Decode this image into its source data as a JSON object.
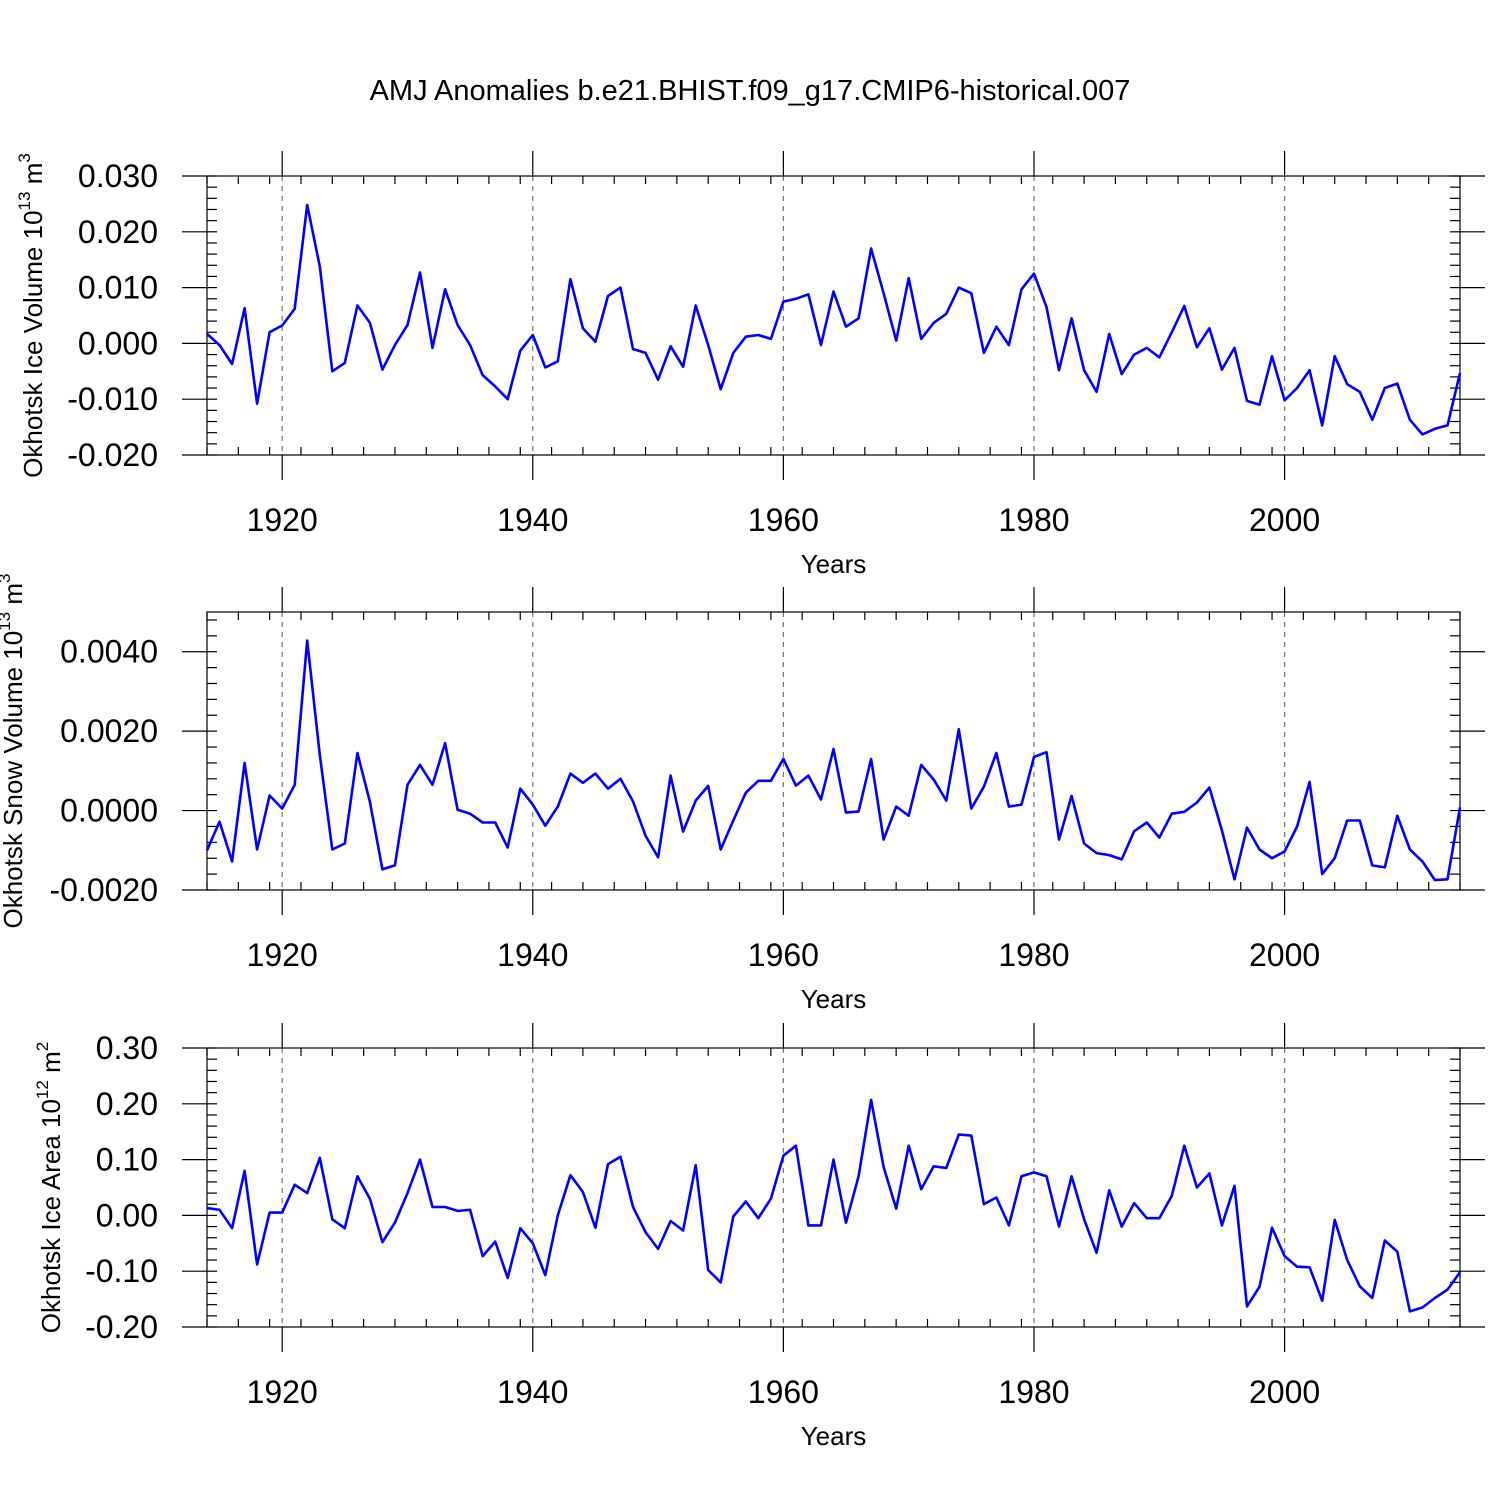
{
  "title": "AMJ Anomalies b.e21.BHIST.f09_g17.CMIP6-historical.007",
  "colors": {
    "series": "#0000ff",
    "axes": "#000000",
    "grid": "#777777"
  },
  "chart_data": [
    {
      "type": "line",
      "name": "ice-volume",
      "xlabel": "Years",
      "ylabel": {
        "text": "Okhotsk Ice Volume 10",
        "sup1": "13",
        "unit": " m",
        "sup2": "3"
      },
      "xlim": [
        1914,
        2014
      ],
      "xticks": [
        1920,
        1940,
        1960,
        1980,
        2000
      ],
      "xtick_labels": [
        "1920",
        "1940",
        "1960",
        "1980",
        "2000"
      ],
      "ylim": [
        -0.02,
        0.03
      ],
      "yticks": [
        -0.02,
        -0.01,
        0.0,
        0.01,
        0.02,
        0.03
      ],
      "ytick_labels": [
        "-0.020",
        "-0.010",
        "0.000",
        "0.010",
        "0.020",
        "0.030"
      ],
      "grid": "vertical dashed at major x ticks",
      "x_start": 1914,
      "values": [
        0.0017,
        -0.0003,
        -0.0037,
        0.0063,
        -0.0108,
        0.002,
        0.0032,
        0.0062,
        0.0248,
        0.0138,
        -0.005,
        -0.0035,
        0.0068,
        0.0037,
        -0.0047,
        -0.0003,
        0.0033,
        0.0127,
        -0.0008,
        0.0097,
        0.0033,
        -0.0003,
        -0.0057,
        -0.0077,
        -0.01,
        -0.0013,
        0.0015,
        -0.0043,
        -0.0032,
        0.0115,
        0.0027,
        0.0003,
        0.0085,
        0.01,
        -0.001,
        -0.0017,
        -0.0065,
        -0.0005,
        -0.0042,
        0.0068,
        -0.0003,
        -0.0082,
        -0.0017,
        0.0012,
        0.0015,
        0.0008,
        0.0075,
        0.008,
        0.0088,
        -0.0003,
        0.0093,
        0.003,
        0.0045,
        0.017,
        0.009,
        0.0005,
        0.0117,
        0.0008,
        0.0037,
        0.0053,
        0.01,
        0.009,
        -0.0017,
        0.003,
        -0.0003,
        0.0097,
        0.0125,
        0.0065,
        -0.0048,
        0.0045,
        -0.0048,
        -0.0087,
        0.0017,
        -0.0055,
        -0.002,
        -0.0008,
        -0.0025,
        0.002,
        0.0067,
        -0.0007,
        0.0027,
        -0.0047,
        -0.0008,
        -0.0103,
        -0.011,
        -0.0023,
        -0.0102,
        -0.008,
        -0.0048,
        -0.0147,
        -0.0023,
        -0.0073,
        -0.0087,
        -0.0137,
        -0.008,
        -0.0072,
        -0.0137,
        -0.0163,
        -0.0153,
        -0.0147,
        -0.0053
      ]
    },
    {
      "type": "line",
      "name": "snow-volume",
      "xlabel": "Years",
      "ylabel": {
        "text": "Okhotsk Snow Volume 10",
        "sup1": "13",
        "unit": " m",
        "sup2": "3"
      },
      "xlim": [
        1914,
        2014
      ],
      "xticks": [
        1920,
        1940,
        1960,
        1980,
        2000
      ],
      "xtick_labels": [
        "1920",
        "1940",
        "1960",
        "1980",
        "2000"
      ],
      "ylim": [
        -0.002,
        0.005
      ],
      "yticks": [
        -0.002,
        0.0,
        0.002,
        0.004
      ],
      "ytick_labels": [
        "-0.0020",
        "0.0000",
        "0.0020",
        "0.0040"
      ],
      "grid": "vertical dashed at major x ticks",
      "x_start": 1914,
      "values": [
        -0.001,
        -0.00028,
        -0.00128,
        0.0012,
        -0.00098,
        0.00038,
        5e-05,
        0.00065,
        0.00428,
        0.0014,
        -0.00098,
        -0.00083,
        0.00145,
        0.00022,
        -0.00148,
        -0.00138,
        0.00065,
        0.00115,
        0.00065,
        0.0017,
        2e-05,
        -8e-05,
        -0.0003,
        -0.0003,
        -0.00093,
        0.00055,
        0.00015,
        -0.00038,
        0.0001,
        0.00093,
        0.0007,
        0.00093,
        0.00055,
        0.0008,
        0.00023,
        -0.00063,
        -0.00118,
        0.00088,
        -0.00053,
        0.00025,
        0.00062,
        -0.00098,
        -0.00025,
        0.00045,
        0.00075,
        0.00075,
        0.0013,
        0.00063,
        0.00088,
        0.00028,
        0.00155,
        -5e-05,
        -2e-05,
        0.0013,
        -0.00073,
        0.0001,
        -0.00013,
        0.00115,
        0.00078,
        0.00025,
        0.00205,
        5e-05,
        0.0006,
        0.00145,
        0.0001,
        0.00015,
        0.00135,
        0.00147,
        -0.00073,
        0.00037,
        -0.00083,
        -0.00107,
        -0.00112,
        -0.00123,
        -0.00052,
        -0.0003,
        -0.00068,
        -8e-05,
        -3e-05,
        0.0002,
        0.00058,
        -0.0005,
        -0.00173,
        -0.00043,
        -0.00098,
        -0.0012,
        -0.00103,
        -0.0004,
        0.00072,
        -0.0016,
        -0.0012,
        -0.00025,
        -0.00025,
        -0.00138,
        -0.00143,
        -0.00013,
        -0.00098,
        -0.00128,
        -0.00175,
        -0.00173,
        8e-05
      ]
    },
    {
      "type": "line",
      "name": "ice-area",
      "xlabel": "Years",
      "ylabel": {
        "text": "Okhotsk Ice Area 10",
        "sup1": "12",
        "unit": " m",
        "sup2": "2"
      },
      "xlim": [
        1914,
        2014
      ],
      "xticks": [
        1920,
        1940,
        1960,
        1980,
        2000
      ],
      "xtick_labels": [
        "1920",
        "1940",
        "1960",
        "1980",
        "2000"
      ],
      "ylim": [
        -0.2,
        0.3
      ],
      "yticks": [
        -0.2,
        -0.1,
        0.0,
        0.1,
        0.2,
        0.3
      ],
      "ytick_labels": [
        "-0.20",
        "-0.10",
        "0.00",
        "0.10",
        "0.20",
        "0.30"
      ],
      "grid": "vertical dashed at major x ticks",
      "x_start": 1914,
      "values": [
        0.013,
        0.01,
        -0.023,
        0.08,
        -0.088,
        0.005,
        0.005,
        0.055,
        0.04,
        0.103,
        -0.007,
        -0.023,
        0.07,
        0.03,
        -0.048,
        -0.013,
        0.04,
        0.1,
        0.015,
        0.015,
        0.008,
        0.01,
        -0.073,
        -0.047,
        -0.112,
        -0.023,
        -0.05,
        -0.107,
        0.0,
        0.072,
        0.042,
        -0.022,
        0.092,
        0.105,
        0.015,
        -0.03,
        -0.06,
        -0.01,
        -0.027,
        0.09,
        -0.098,
        -0.12,
        -0.002,
        0.025,
        -0.005,
        0.03,
        0.107,
        0.125,
        -0.018,
        -0.018,
        0.1,
        -0.013,
        0.07,
        0.207,
        0.087,
        0.012,
        0.125,
        0.047,
        0.088,
        0.085,
        0.145,
        0.143,
        0.02,
        0.032,
        -0.018,
        0.07,
        0.077,
        0.07,
        -0.02,
        0.07,
        -0.007,
        -0.067,
        0.045,
        -0.02,
        0.022,
        -0.005,
        -0.005,
        0.035,
        0.125,
        0.05,
        0.075,
        -0.018,
        0.053,
        -0.163,
        -0.128,
        -0.022,
        -0.073,
        -0.092,
        -0.093,
        -0.153,
        -0.008,
        -0.08,
        -0.127,
        -0.148,
        -0.045,
        -0.065,
        -0.172,
        -0.165,
        -0.148,
        -0.133,
        -0.102
      ]
    }
  ]
}
